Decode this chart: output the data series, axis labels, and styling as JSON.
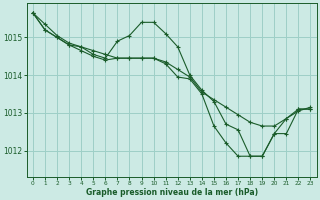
{
  "title": "Graphe pression niveau de la mer (hPa)",
  "background_color": "#cceae4",
  "grid_color": "#9ecfc7",
  "line_color": "#1a5c2a",
  "ylim": [
    1011.3,
    1015.9
  ],
  "xlim": [
    -0.5,
    23.5
  ],
  "yticks": [
    1012,
    1013,
    1014,
    1015
  ],
  "xticks": [
    0,
    1,
    2,
    3,
    4,
    5,
    6,
    7,
    8,
    9,
    10,
    11,
    12,
    13,
    14,
    15,
    16,
    17,
    18,
    19,
    20,
    21,
    22,
    23
  ],
  "series1_x": [
    0,
    1,
    2,
    3,
    4,
    5,
    6,
    7,
    8,
    9,
    10,
    11,
    12,
    13,
    14,
    15,
    16,
    17,
    18,
    19,
    20,
    21,
    22,
    23
  ],
  "series1_y": [
    1015.65,
    1015.35,
    1015.05,
    1014.85,
    1014.75,
    1014.65,
    1014.55,
    1014.45,
    1014.45,
    1014.45,
    1014.45,
    1014.35,
    1014.15,
    1013.95,
    1013.55,
    1013.35,
    1013.15,
    1012.95,
    1012.75,
    1012.65,
    1012.65,
    1012.85,
    1013.05,
    1013.15
  ],
  "series2_x": [
    0,
    1,
    2,
    3,
    4,
    5,
    6,
    7,
    8,
    9,
    10,
    11,
    12,
    13,
    14,
    15,
    16,
    17,
    18,
    19,
    20,
    21,
    22,
    23
  ],
  "series2_y": [
    1015.65,
    1015.2,
    1015.0,
    1014.8,
    1014.75,
    1014.55,
    1014.45,
    1014.9,
    1015.05,
    1015.4,
    1015.4,
    1015.1,
    1014.75,
    1014.0,
    1013.6,
    1013.3,
    1012.7,
    1012.55,
    1011.85,
    1011.85,
    1012.45,
    1012.85,
    1013.1,
    1013.1
  ],
  "series3_x": [
    0,
    1,
    2,
    3,
    4,
    5,
    6,
    7,
    8,
    9,
    10,
    11,
    12,
    13,
    14,
    15,
    16,
    17,
    18,
    19,
    20,
    21,
    22,
    23
  ],
  "series3_y": [
    1015.65,
    1015.2,
    1015.0,
    1014.8,
    1014.65,
    1014.5,
    1014.4,
    1014.45,
    1014.45,
    1014.45,
    1014.45,
    1014.3,
    1013.95,
    1013.9,
    1013.5,
    1012.65,
    1012.2,
    1011.85,
    1011.85,
    1011.85,
    1012.45,
    1012.45,
    1013.1,
    1013.1
  ]
}
